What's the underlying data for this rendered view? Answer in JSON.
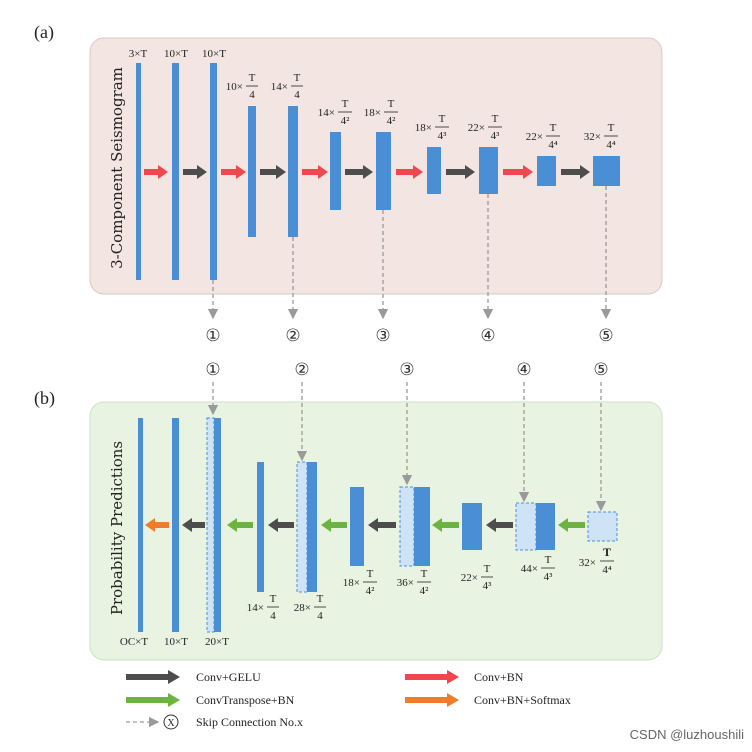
{
  "panel_a": {
    "label": "(a)",
    "title": "3-Component Seismogram",
    "layers": [
      {
        "id": "a1",
        "top_label": "3×T"
      },
      {
        "id": "a2",
        "top_label": "10×T"
      },
      {
        "id": "a3",
        "top_label": "10×T"
      },
      {
        "id": "a4",
        "top_mult": "10×",
        "top_num": "T",
        "top_den": "4"
      },
      {
        "id": "a5",
        "top_mult": "14×",
        "top_num": "T",
        "top_den": "4"
      },
      {
        "id": "a6",
        "top_mult": "14×",
        "top_num": "T",
        "top_den": "4²"
      },
      {
        "id": "a7",
        "top_mult": "18×",
        "top_num": "T",
        "top_den": "4²"
      },
      {
        "id": "a8",
        "top_mult": "18×",
        "top_num": "T",
        "top_den": "4³"
      },
      {
        "id": "a9",
        "top_mult": "22×",
        "top_num": "T",
        "top_den": "4³"
      },
      {
        "id": "a10",
        "top_mult": "22×",
        "top_num": "T",
        "top_den": "4⁴"
      },
      {
        "id": "a11",
        "top_mult": "32×",
        "top_num": "T",
        "top_den": "4⁴"
      }
    ],
    "skip_labels": [
      "①",
      "②",
      "③",
      "④",
      "⑤"
    ]
  },
  "panel_b": {
    "label": "(b)",
    "title": "Probability Predictions",
    "skip_labels": [
      "①",
      "②",
      "③",
      "④",
      "⑤"
    ],
    "bottom_labels": [
      {
        "id": "b1",
        "text": "OC×T"
      },
      {
        "id": "b2",
        "text": "10×T"
      },
      {
        "id": "b3",
        "text": "20×T"
      },
      {
        "id": "b4",
        "mult": "14×",
        "num": "T",
        "den": "4"
      },
      {
        "id": "b5",
        "mult": "28×",
        "num": "T",
        "den": "4"
      },
      {
        "id": "b6",
        "mult": "18×",
        "num": "T",
        "den": "4²"
      },
      {
        "id": "b7",
        "mult": "36×",
        "num": "T",
        "den": "4²"
      },
      {
        "id": "b8",
        "mult": "22×",
        "num": "T",
        "den": "4³"
      },
      {
        "id": "b9",
        "mult": "44×",
        "num": "T",
        "den": "4³"
      },
      {
        "id": "b10",
        "mult": "32×",
        "num": "T",
        "den": "4⁴"
      }
    ]
  },
  "legend": {
    "conv_gelu": "Conv+GELU",
    "conv_bn": "Conv+BN",
    "convtranspose_bn": "ConvTranspose+BN",
    "conv_bn_softmax": "Conv+BN+Softmax",
    "skip_symbol": "X",
    "skip_text": "Skip Connection No.x"
  },
  "colors": {
    "panel_a_bg": "#f3e6e2",
    "panel_b_bg": "#e8f4e1",
    "layer_blue": "#4a8fd6",
    "layer_light": "#cfe3f6",
    "gelu_gray": "#4d4d4d",
    "bn_red": "#f0474e",
    "transpose_green": "#6cb43f",
    "softmax_orange": "#ee7c2b",
    "skip_gray": "#9a9a9a"
  },
  "watermark": "CSDN @luzhoushili"
}
